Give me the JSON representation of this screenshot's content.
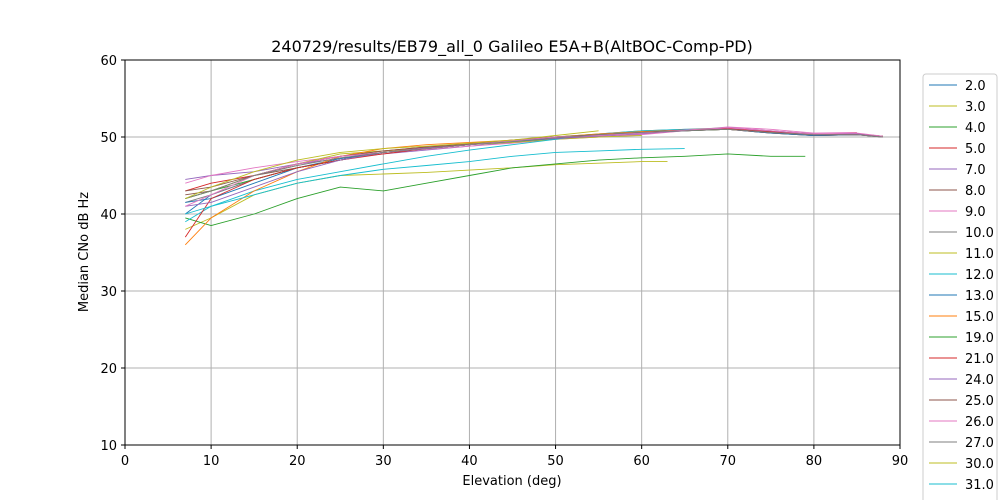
{
  "chart_data": {
    "type": "line",
    "title": "240729/results/EB79_all_0 Galileo E5A+B(AltBOC-Comp-PD)",
    "xlabel": "Elevation (deg)",
    "ylabel": "Median CNo dB Hz",
    "xlim": [
      0,
      90
    ],
    "ylim": [
      10,
      60
    ],
    "xticks": [
      0,
      10,
      20,
      30,
      40,
      50,
      60,
      70,
      80,
      90
    ],
    "yticks": [
      10,
      20,
      30,
      40,
      50,
      60
    ],
    "grid": true,
    "legend_position": "right, outside plot area",
    "series": [
      {
        "name": "2.0",
        "color": "#1f77b4",
        "x": [
          7,
          10,
          15,
          20,
          25,
          30,
          35,
          40,
          45,
          50,
          55,
          60,
          65,
          70,
          75,
          80,
          85,
          88
        ],
        "y": [
          40,
          42.5,
          44.5,
          46,
          47,
          48,
          48.5,
          49,
          49.5,
          50,
          50.3,
          50.6,
          50.8,
          51,
          50.6,
          50.2,
          50.3,
          50.1
        ]
      },
      {
        "name": "3.0",
        "color": "#bcbd22",
        "x": [
          7,
          10,
          15,
          20,
          25,
          30,
          35,
          40,
          45,
          50,
          55,
          60,
          63
        ],
        "y": [
          38,
          39.5,
          42.5,
          44,
          45,
          45.2,
          45.4,
          45.7,
          46,
          46.4,
          46.6,
          46.8,
          46.8
        ]
      },
      {
        "name": "4.0",
        "color": "#2ca02c",
        "x": [
          7,
          10,
          15,
          20,
          25,
          30,
          35,
          40,
          45,
          50,
          55,
          60,
          65,
          70,
          75,
          79
        ],
        "y": [
          39.5,
          38.5,
          40,
          42,
          43.5,
          43,
          44,
          45,
          46,
          46.5,
          47,
          47.3,
          47.5,
          47.8,
          47.5,
          47.5
        ]
      },
      {
        "name": "5.0",
        "color": "#d62728",
        "x": [
          7,
          10,
          15,
          20,
          25,
          30,
          35,
          40,
          45,
          50,
          55,
          60,
          65,
          70,
          75,
          80,
          85,
          88
        ],
        "y": [
          43,
          44,
          45,
          46.5,
          47.5,
          48.2,
          48.7,
          49,
          49.5,
          50,
          50.3,
          50.5,
          50.8,
          51,
          50.5,
          50.2,
          50.3,
          50.1
        ]
      },
      {
        "name": "7.0",
        "color": "#9467bd",
        "x": [
          7,
          10,
          15,
          20,
          25,
          30,
          35,
          40,
          45,
          50,
          55,
          60,
          65,
          70,
          75,
          80,
          85,
          88
        ],
        "y": [
          44.5,
          45,
          45.5,
          46.5,
          47.2,
          47.8,
          48.3,
          48.8,
          49.3,
          49.8,
          50,
          50.4,
          50.8,
          51.1,
          50.7,
          50.3,
          50.4,
          50
        ]
      },
      {
        "name": "8.0",
        "color": "#8c564b",
        "x": [
          7,
          10,
          15,
          20,
          25,
          30,
          35,
          40,
          45,
          50,
          55,
          60,
          65,
          70,
          75,
          80,
          85,
          88
        ],
        "y": [
          42.5,
          43,
          45,
          46,
          47,
          48,
          48.5,
          49,
          49.5,
          50,
          50.2,
          50.5,
          50.8,
          51,
          50.5,
          50.2,
          50.3,
          50
        ]
      },
      {
        "name": "9.0",
        "color": "#e377c2",
        "x": [
          7,
          10,
          15,
          20,
          25,
          30,
          35,
          40,
          45,
          50,
          55,
          60,
          65,
          70,
          75,
          80,
          85
        ],
        "y": [
          44,
          45,
          46,
          46.8,
          47.5,
          48,
          48.4,
          48.8,
          49.2,
          49.7,
          50,
          50.3,
          50.8,
          51.3,
          51,
          50.5,
          50.6
        ]
      },
      {
        "name": "10.0",
        "color": "#7f7f7f",
        "x": [
          7,
          10,
          15,
          20,
          25,
          30,
          35,
          40,
          45,
          50,
          55,
          60,
          65,
          70,
          75,
          80,
          85,
          88
        ],
        "y": [
          41.5,
          42.5,
          44.5,
          46,
          47,
          48,
          48.5,
          49,
          49.6,
          50,
          50.4,
          50.8,
          51,
          51.2,
          50.8,
          50.4,
          50.4,
          50.1
        ]
      },
      {
        "name": "11.0",
        "color": "#bcbd22",
        "x": [
          7,
          10,
          15,
          20,
          25,
          30,
          35,
          40,
          45,
          50,
          55,
          60
        ],
        "y": [
          42,
          43,
          45,
          46.5,
          47.8,
          48.2,
          48.5,
          49,
          49.3,
          49.7,
          50,
          50.2
        ]
      },
      {
        "name": "12.0",
        "color": "#17becf",
        "x": [
          7,
          10,
          15,
          20,
          25,
          30,
          35,
          40,
          45,
          50,
          55,
          60,
          65,
          70,
          75,
          80,
          85,
          88
        ],
        "y": [
          39,
          41,
          43,
          44.5,
          45.5,
          46.5,
          47.5,
          48.3,
          49,
          49.7,
          50.4,
          50.8,
          51,
          51,
          50.6,
          50.3,
          50.4,
          50.1
        ]
      },
      {
        "name": "13.0",
        "color": "#1f77b4",
        "x": [
          7,
          10,
          15,
          20,
          25,
          30,
          35,
          40,
          45,
          50,
          55,
          60,
          65,
          70,
          75,
          80,
          85,
          88
        ],
        "y": [
          41.5,
          42,
          44,
          46,
          47.2,
          48,
          48.5,
          49,
          49.4,
          49.8,
          50.2,
          50.6,
          50.9,
          51,
          50.5,
          50.2,
          50.3,
          50
        ]
      },
      {
        "name": "15.0",
        "color": "#ff7f0e",
        "x": [
          7,
          10,
          15,
          20,
          25,
          30,
          35,
          40,
          45,
          50,
          55,
          60,
          65,
          70,
          75,
          80,
          85
        ],
        "y": [
          36,
          39.5,
          43,
          45.5,
          47.5,
          48.5,
          49,
          49.3,
          49.6,
          50,
          50.4,
          50.7,
          50.9,
          51,
          50.6,
          50.3,
          50.5
        ]
      },
      {
        "name": "19.0",
        "color": "#2ca02c",
        "x": [
          7,
          10,
          15,
          20,
          25,
          30,
          35,
          40,
          45,
          50,
          55,
          60,
          65,
          70,
          75,
          80,
          85,
          88
        ],
        "y": [
          42,
          43,
          44.5,
          46,
          47,
          48,
          48.5,
          49,
          49.5,
          50,
          50.3,
          50.6,
          50.8,
          51,
          50.7,
          50.4,
          50.4,
          50.1
        ]
      },
      {
        "name": "21.0",
        "color": "#d62728",
        "x": [
          7,
          10,
          15,
          20,
          25,
          30,
          35,
          40,
          45,
          50,
          55,
          60,
          65,
          70,
          75,
          80,
          85,
          88
        ],
        "y": [
          37,
          42,
          44.5,
          46,
          47,
          47.8,
          48.5,
          49,
          49.5,
          49.9,
          50.2,
          50.6,
          50.9,
          51.1,
          50.7,
          50.3,
          50.4,
          50.1
        ]
      },
      {
        "name": "24.0",
        "color": "#9467bd",
        "x": [
          7,
          10,
          15,
          20,
          25,
          30,
          35,
          40,
          45,
          50,
          55,
          60,
          65,
          70,
          75,
          80,
          85,
          88
        ],
        "y": [
          41,
          41.5,
          43.5,
          45.5,
          47,
          48,
          48.6,
          49,
          49.5,
          49.8,
          50.1,
          50.5,
          50.8,
          51.2,
          50.8,
          50.4,
          50.4,
          50
        ]
      },
      {
        "name": "25.0",
        "color": "#8c564b",
        "x": [
          7,
          10,
          15,
          20,
          25,
          30,
          35,
          40,
          45,
          50,
          55,
          60,
          65,
          70,
          75,
          80,
          85,
          88
        ],
        "y": [
          43,
          43.5,
          45,
          46.5,
          47.5,
          48.2,
          48.7,
          49.1,
          49.6,
          50,
          50.3,
          50.6,
          50.9,
          51,
          50.6,
          50.3,
          50.3,
          50
        ]
      },
      {
        "name": "26.0",
        "color": "#e377c2",
        "x": [
          7,
          10,
          15,
          20,
          25,
          30,
          35,
          40,
          45,
          50,
          55,
          60,
          65,
          70,
          75,
          80,
          85,
          88
        ],
        "y": [
          41,
          42.5,
          45,
          46.5,
          47.5,
          48,
          48.5,
          49,
          49.5,
          50,
          50.2,
          50.5,
          50.9,
          51.2,
          50.8,
          50.4,
          50.5,
          50.1
        ]
      },
      {
        "name": "27.0",
        "color": "#7f7f7f",
        "x": [
          7,
          10,
          15,
          20,
          25,
          30,
          35,
          40,
          45,
          50,
          55,
          60,
          65,
          70,
          75,
          80,
          85,
          88
        ],
        "y": [
          42,
          43,
          45,
          46.3,
          47.3,
          48,
          48.5,
          49,
          49.4,
          49.9,
          50.3,
          50.6,
          50.8,
          51,
          50.6,
          50.3,
          50.3,
          50
        ]
      },
      {
        "name": "30.0",
        "color": "#bcbd22",
        "x": [
          7,
          10,
          15,
          20,
          25,
          30,
          35,
          40,
          45,
          50,
          55
        ],
        "y": [
          42,
          43.5,
          45.5,
          47,
          48,
          48.5,
          48.8,
          49.2,
          49.6,
          50.2,
          50.8
        ]
      },
      {
        "name": "31.0",
        "color": "#17becf",
        "x": [
          7,
          10,
          15,
          20,
          25,
          30,
          35,
          40,
          45,
          50,
          55,
          60,
          65
        ],
        "y": [
          40,
          41,
          42.5,
          44,
          45,
          45.8,
          46.3,
          46.8,
          47.5,
          48,
          48.2,
          48.4,
          48.5
        ]
      }
    ]
  }
}
